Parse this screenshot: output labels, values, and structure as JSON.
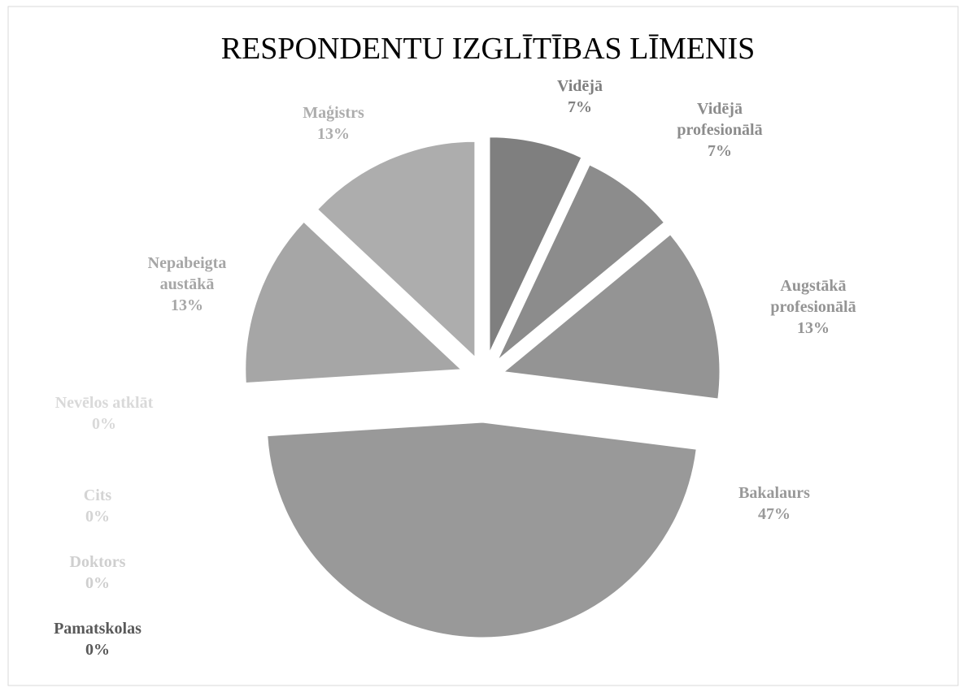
{
  "chart_data": {
    "type": "pie",
    "title": "RESPONDENTU IZGLĪTĪBAS LĪMENIS",
    "categories": [
      "Vidējā",
      "Vidējā profesionālā",
      "Augstākā profesionālā",
      "Bakalaurs",
      "Pamatskolas",
      "Doktors",
      "Cits",
      "Nevēlos atklāt",
      "Nepabeigta austākā",
      "Maģistrs"
    ],
    "values": [
      7,
      7,
      13,
      47,
      0,
      0,
      0,
      0,
      13,
      13
    ],
    "value_labels": [
      "7%",
      "7%",
      "13%",
      "47%",
      "0%",
      "0%",
      "0%",
      "0%",
      "13%",
      "13%"
    ],
    "colors": [
      "#7f7f7f",
      "#8c8c8c",
      "#949494",
      "#999999",
      "#595959",
      "#cfcfcf",
      "#d4d4d4",
      "#d9d9d9",
      "#a6a6a6",
      "#adadad"
    ]
  }
}
